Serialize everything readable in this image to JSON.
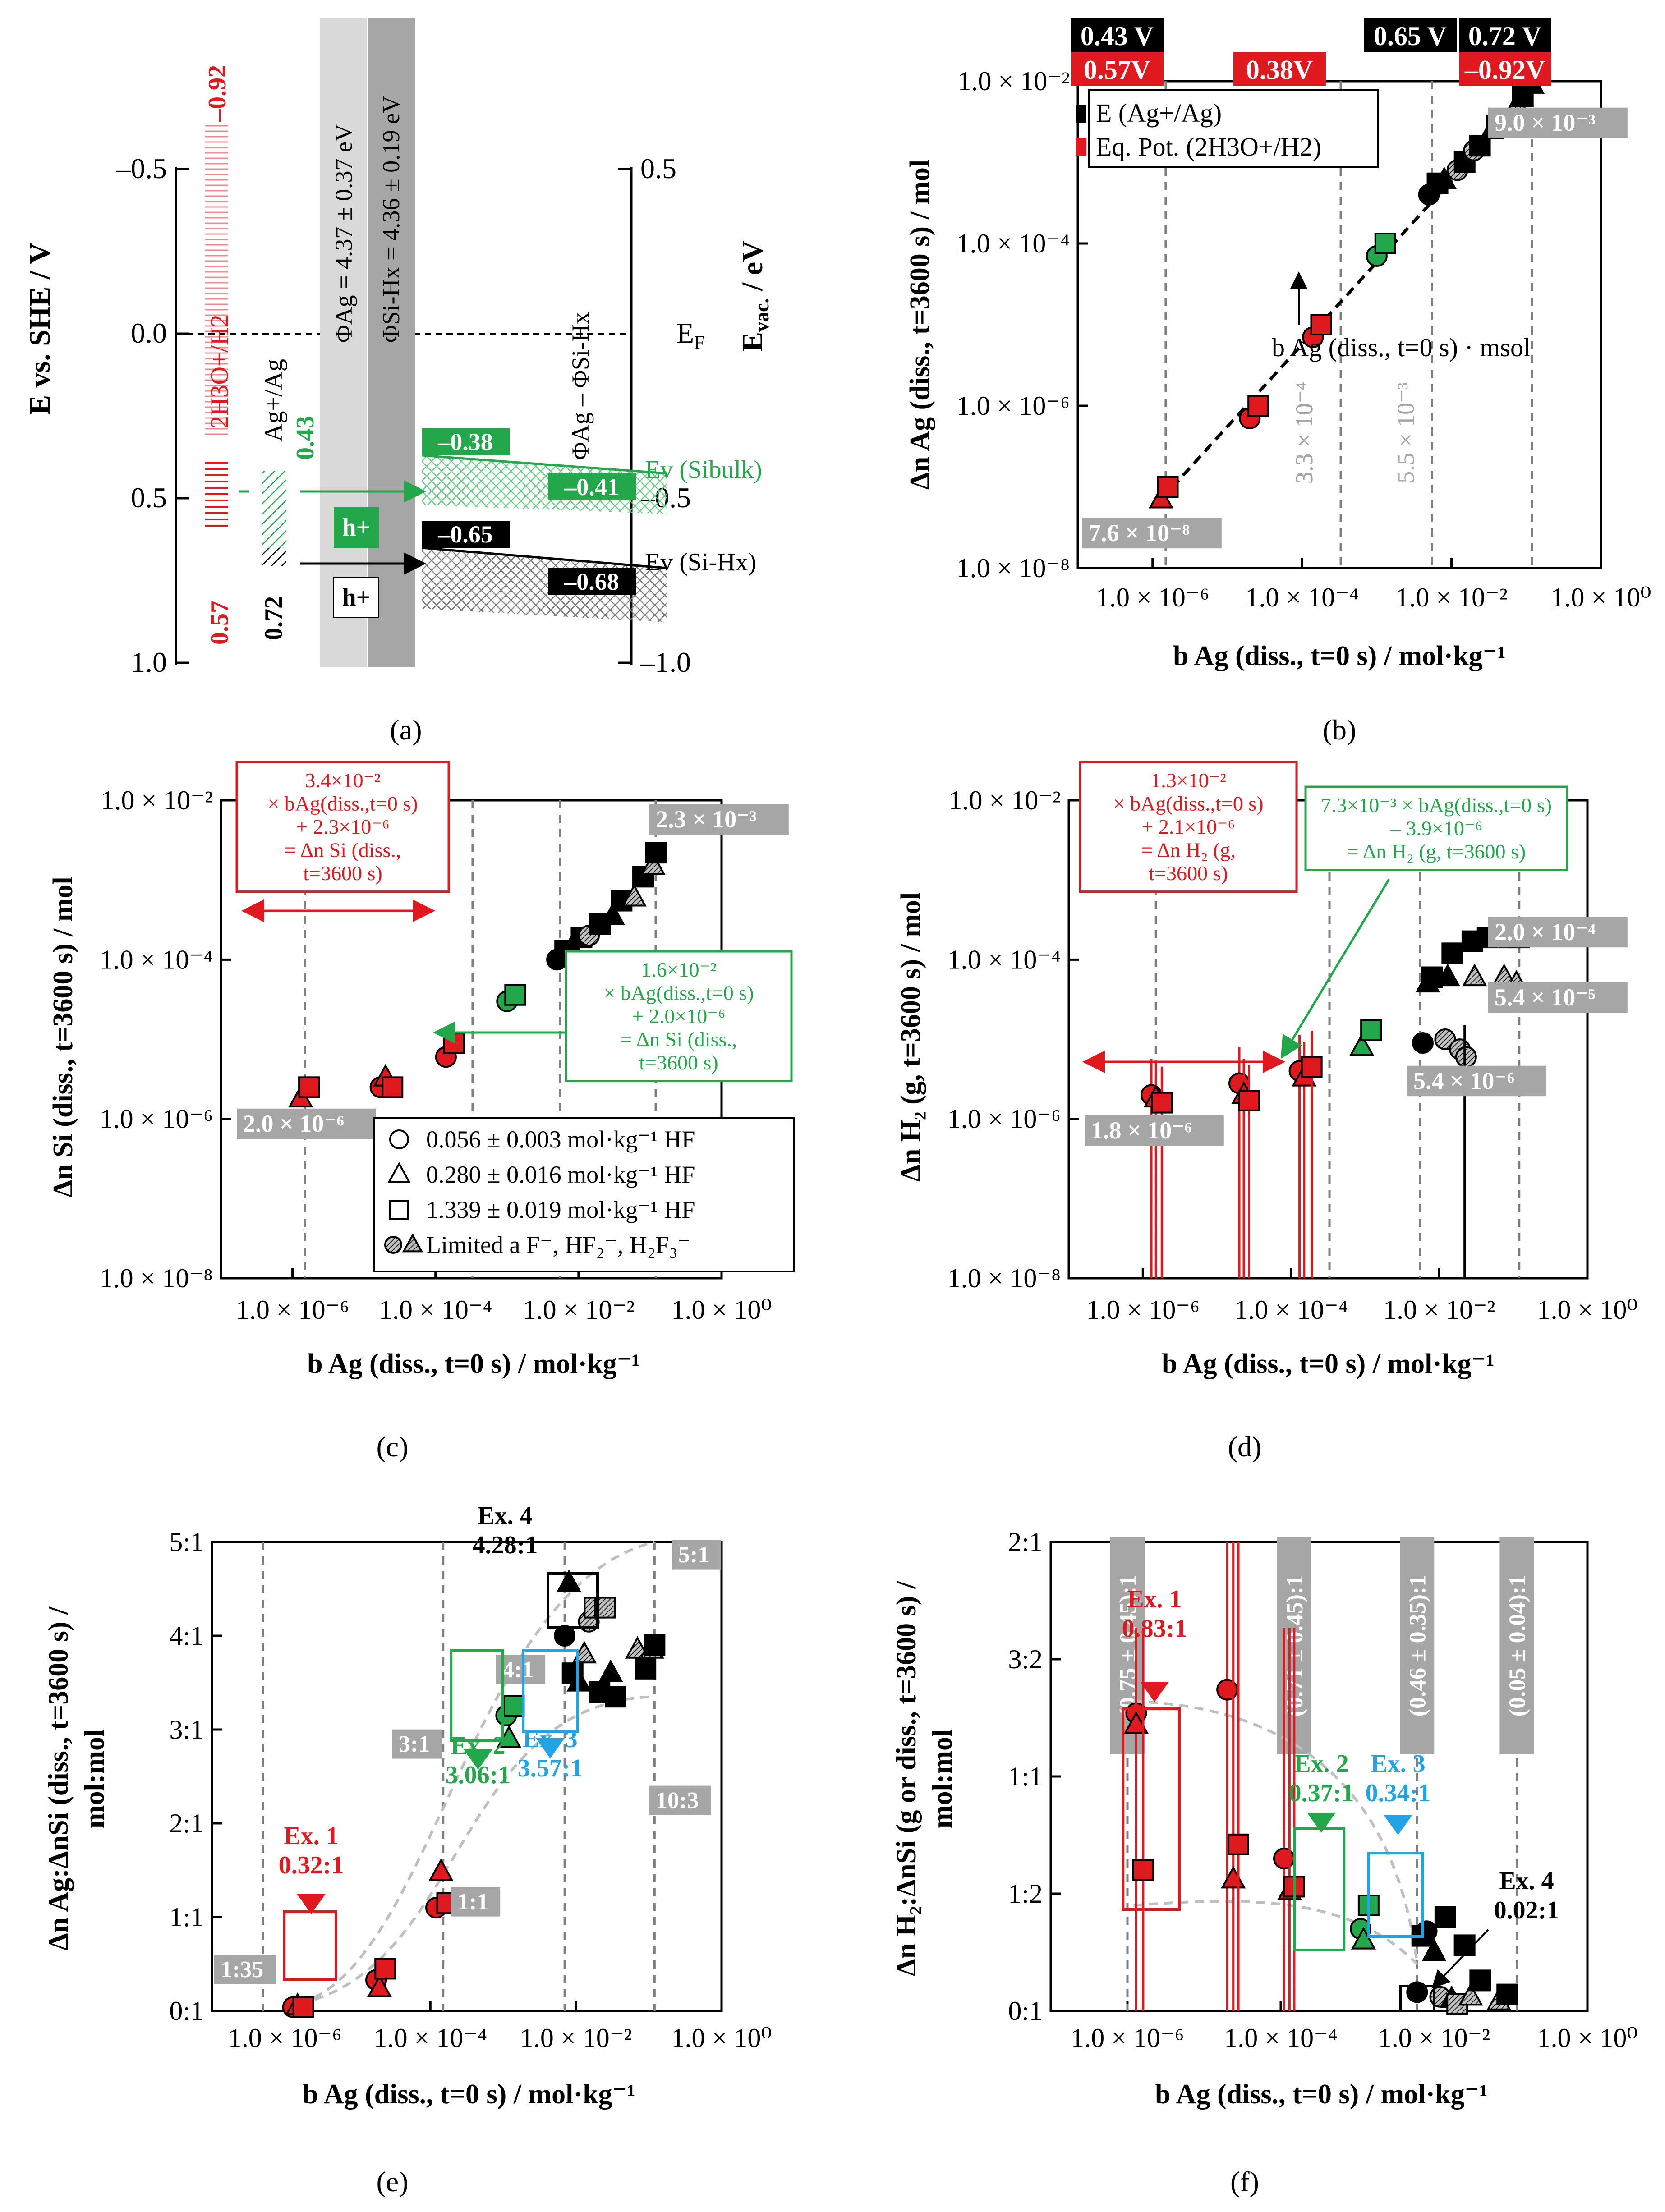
{
  "colors": {
    "red": "#e0191f",
    "green": "#22a84a",
    "black": "#000000",
    "grey": "#a6a6a6",
    "blue": "#22a3e6",
    "dark_grey": "#7f7f7f"
  },
  "panel_a": {
    "label": "(a)",
    "y_left_label": "E vs. SHE / V",
    "y_right_label": "E",
    "y_right_sub": "vac.",
    "y_right_unit": " / eV",
    "left_ticks": [
      "–0.5",
      "0.0",
      "0.5",
      "1.0"
    ],
    "right_ticks": [
      "0.5",
      "–0.5",
      "–1.0"
    ],
    "ef_label": "E",
    "ef_sub": "F",
    "red_top": "–0.92",
    "red_label": "2H3O+/H2",
    "red_bottom": "0.57",
    "green_value": "0.43",
    "green_label": "Ag+/Ag",
    "black_value": "0.72",
    "phi_ag": "ΦAg = 4.37 ± 0.37 eV",
    "phi_si": "ΦSi-Hx = 4.36 ± 0.19 eV",
    "phi_diff": "ΦAg – ΦSi-Hx",
    "box_green_1": "–0.38",
    "box_green_2": "–0.41",
    "box_black_1": "–0.65",
    "box_black_2": "–0.68",
    "h_plus": "h+",
    "ev_si_bulk": "Ev (Sibulk)",
    "ev_si_hx": "Ev (Si-Hx)"
  },
  "chart_data": [
    {
      "panel": "b",
      "type": "scatter",
      "label": "(b)",
      "xlabel": "b Ag (diss., t=0 s) / mol·kg⁻¹",
      "ylabel": "Δn Ag (diss., t=3600 s) / mol",
      "x_scale": "log",
      "y_scale": "log",
      "xlim": [
        1e-07,
        1
      ],
      "ylim": [
        1e-08,
        0.01
      ],
      "x_ticks": [
        "1.0 × 10⁻⁶",
        "1.0 × 10⁻⁴",
        "1.0 × 10⁻²",
        "1.0 × 10⁰"
      ],
      "y_ticks": [
        "1.0 × 10⁻²",
        "1.0 × 10⁻⁴",
        "1.0 × 10⁻⁶",
        "1.0 × 10⁻⁸"
      ],
      "top_black": [
        "0.43 V",
        "0.65 V",
        "0.72 V"
      ],
      "top_red": [
        "0.57V",
        "0.38V",
        "–0.92V"
      ],
      "legend": [
        "E (Ag+/Ag)",
        "Eq. Pot. (2H3O+/H2)"
      ],
      "annotations": [
        "9.0 × 10⁻³",
        "7.6 × 10⁻⁸",
        "3.3 × 10⁻⁴",
        "5.5 × 10⁻³",
        "b Ag (diss., t=0 s) · msol"
      ],
      "fit": {
        "slope": 1,
        "intercept_note": "y = x·msol"
      }
    },
    {
      "panel": "c",
      "type": "scatter",
      "label": "(c)",
      "xlabel": "b Ag (diss., t=0 s) / mol·kg⁻¹",
      "ylabel": "Δn Si (diss., t=3600 s) / mol",
      "x_scale": "log",
      "y_scale": "log",
      "xlim": [
        1e-07,
        1
      ],
      "ylim": [
        1e-08,
        0.01
      ],
      "annotations": [
        "2.3 × 10⁻³",
        "2.0 × 10⁻⁶"
      ],
      "red_box": [
        "3.4×10⁻²",
        "× bAg(diss.,t=0 s)",
        "+ 2.3×10⁻⁶",
        "= Δn Si (diss.,",
        "t=3600 s)"
      ],
      "black_box": [
        "1.6×10⁻²",
        "× bAg(diss.,t=0 s)",
        "+ 2.0×10⁻⁶",
        "= Δn Si (diss.,",
        "t=3600 s)"
      ],
      "legend": [
        "0.056 ± 0.003 mol·kg⁻¹ HF",
        "0.280 ± 0.016 mol·kg⁻¹ HF",
        "1.339 ± 0.019 mol·kg⁻¹ HF",
        "Limited a F⁻, HF₂⁻, H₂F₃⁻"
      ]
    },
    {
      "panel": "d",
      "type": "scatter",
      "label": "(d)",
      "xlabel": "b Ag (diss., t=0 s) / mol·kg⁻¹",
      "ylabel": "Δn H₂ (g, t=3600 s) / mol",
      "x_scale": "log",
      "y_scale": "log",
      "xlim": [
        1e-07,
        1
      ],
      "ylim": [
        1e-08,
        0.01
      ],
      "annotations": [
        "2.0 × 10⁻⁴",
        "5.4 × 10⁻⁵",
        "5.4 × 10⁻⁶",
        "1.8 × 10⁻⁶"
      ],
      "red_box": [
        "1.3×10⁻²",
        "× bAg(diss.,t=0 s)",
        "+ 2.1×10⁻⁶",
        "= Δn H₂ (g,",
        "t=3600 s)"
      ],
      "green_box": [
        "7.3×10⁻³ × bAg(diss.,t=0 s)",
        "– 3.9×10⁻⁶",
        "= Δn H₂ (g, t=3600 s)"
      ]
    },
    {
      "panel": "e",
      "type": "scatter",
      "label": "(e)",
      "xlabel": "b Ag (diss., t=0 s) / mol·kg⁻¹",
      "ylabel": "Δn Ag:ΔnSi (diss., t=3600 s) / mol:mol",
      "x_scale": "log",
      "xlim": [
        1e-07,
        1
      ],
      "ylim": [
        0,
        5
      ],
      "y_ticks": [
        "5:1",
        "4:1",
        "3:1",
        "2:1",
        "1:1",
        "0:1"
      ],
      "ratio_tags": [
        "5:1",
        "4:1",
        "3:1",
        "1:1",
        "1:35",
        "10:3"
      ],
      "examples": [
        {
          "name": "Ex. 1",
          "value": "0.32:1",
          "color": "red"
        },
        {
          "name": "Ex. 2",
          "value": "3.06:1",
          "color": "green"
        },
        {
          "name": "Ex. 3",
          "value": "3.57:1",
          "color": "blue"
        },
        {
          "name": "Ex. 4",
          "value": "4.28:1",
          "color": "black"
        }
      ]
    },
    {
      "panel": "f",
      "type": "scatter",
      "label": "(f)",
      "xlabel": "b Ag (diss., t=0 s) / mol·kg⁻¹",
      "ylabel": "Δn H₂:ΔnSi (g or diss., t=3600 s) / mol:mol",
      "x_scale": "log",
      "xlim": [
        1e-07,
        1
      ],
      "ylim": [
        0,
        2
      ],
      "y_ticks": [
        "2:1",
        "3:2",
        "1:1",
        "1:2",
        "0:1"
      ],
      "vertical_tags": [
        "(0.75 ± 0.45):1",
        "(0.71 ± 0.45):1",
        "(0.46 ± 0.35):1",
        "(0.05 ± 0.04):1"
      ],
      "examples": [
        {
          "name": "Ex. 1",
          "value": "0.83:1",
          "color": "red"
        },
        {
          "name": "Ex. 2",
          "value": "0.37:1",
          "color": "green"
        },
        {
          "name": "Ex. 3",
          "value": "0.34:1",
          "color": "blue"
        },
        {
          "name": "Ex. 4",
          "value": "0.02:1",
          "color": "black"
        }
      ]
    }
  ]
}
